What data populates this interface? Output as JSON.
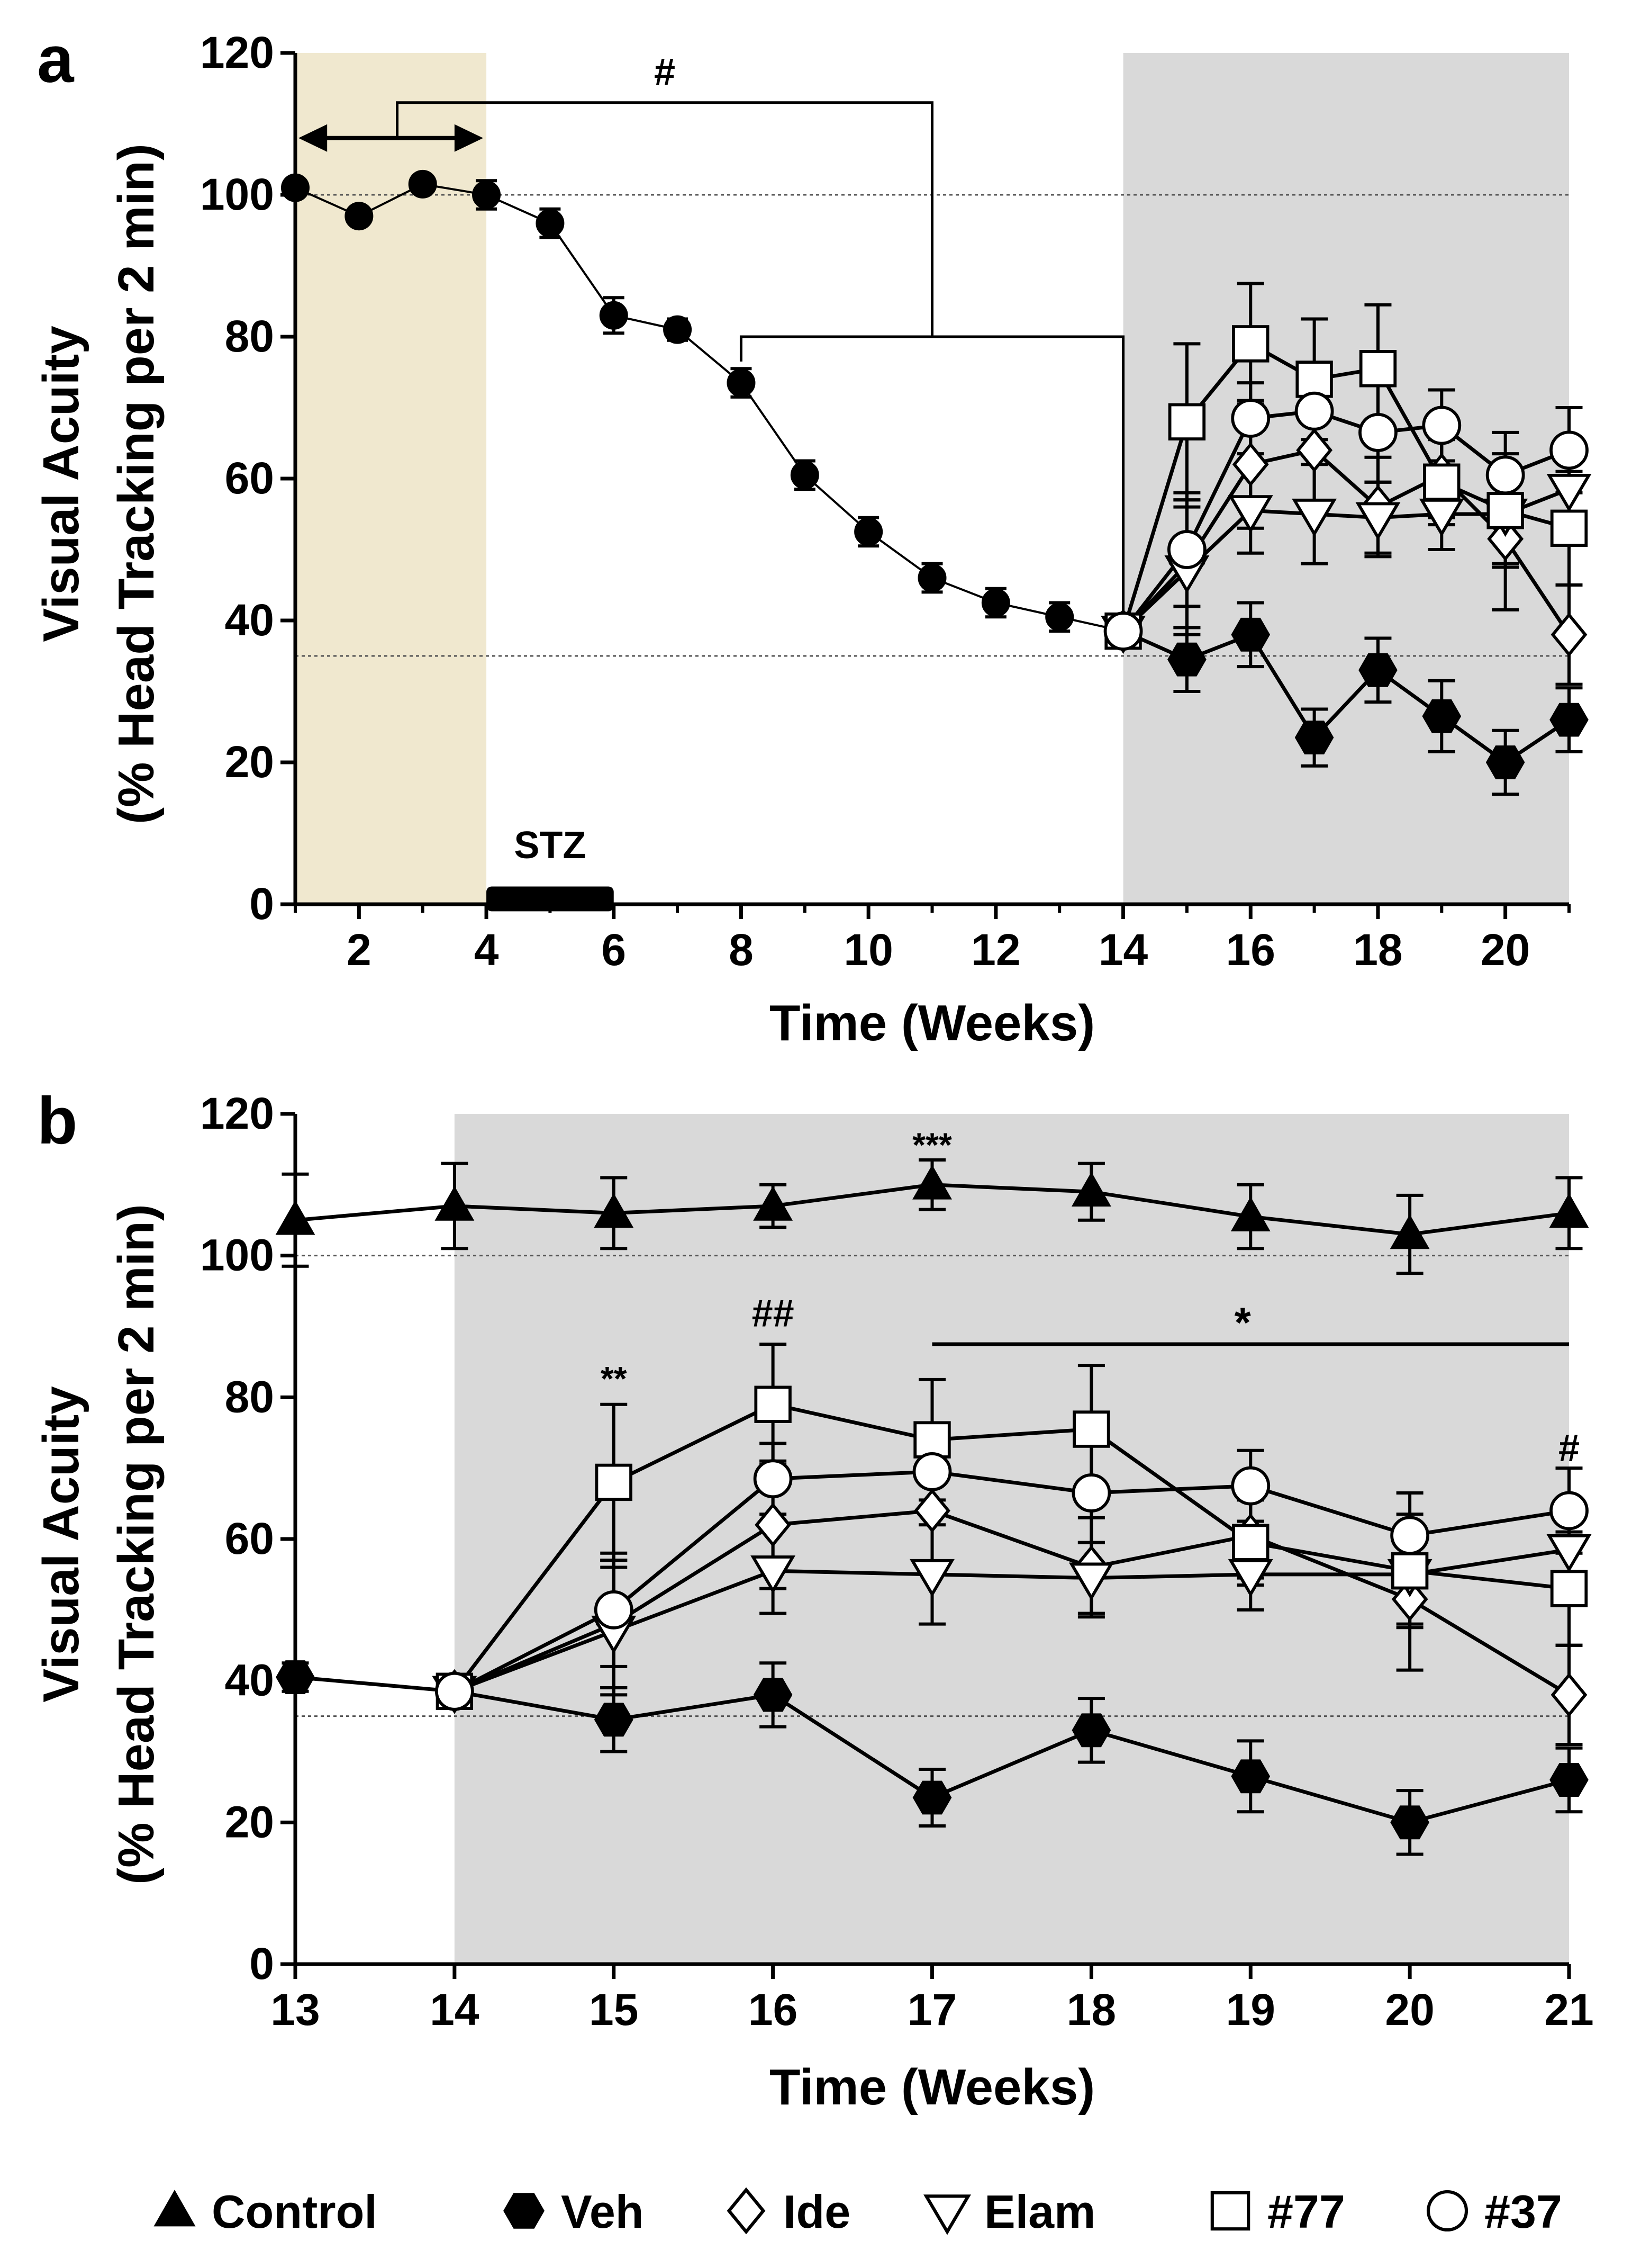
{
  "chart_data": [
    {
      "panel": "a",
      "type": "line",
      "xlabel": "Time (Weeks)",
      "ylabel_line1": "Visual Acuity",
      "ylabel_line2": "(% Head Tracking per 2 min)",
      "xlim": [
        1,
        21
      ],
      "ylim": [
        0,
        120
      ],
      "xticks": [
        2,
        4,
        6,
        8,
        10,
        12,
        14,
        16,
        18,
        20
      ],
      "yticks": [
        0,
        20,
        40,
        60,
        80,
        100,
        120
      ],
      "reference_lines": [
        100,
        35
      ],
      "shaded_regions": [
        {
          "from": 1,
          "to": 4,
          "color": "#f0e8cf"
        },
        {
          "from": 14,
          "to": 21,
          "color": "#d9d9d9"
        }
      ],
      "stz_bar": {
        "label": "STZ",
        "from": 4,
        "to": 6
      },
      "annotations": {
        "hash": "#"
      },
      "baseline_series": {
        "x": [
          1,
          2,
          3,
          4,
          5,
          6,
          7,
          8,
          9,
          10,
          11,
          12,
          13,
          14
        ],
        "y": [
          101,
          97,
          101.5,
          100,
          96,
          83,
          81,
          73.5,
          60.5,
          52.5,
          46,
          42.5,
          40.5,
          38.5
        ],
        "err": [
          0,
          0,
          0,
          2,
          2,
          2.5,
          1.5,
          2,
          2,
          2,
          2,
          2,
          2,
          2
        ]
      },
      "series": [
        {
          "name": "Veh",
          "marker": "hexagon",
          "x": [
            14,
            15,
            16,
            17,
            18,
            19,
            20,
            21
          ],
          "y": [
            38.5,
            34.5,
            38,
            23.5,
            33,
            26.5,
            20,
            26
          ],
          "err": [
            2,
            4.5,
            4.5,
            4,
            4.5,
            5,
            4.5,
            4.5
          ]
        },
        {
          "name": "Ide",
          "marker": "diamond",
          "x": [
            14,
            15,
            16,
            17,
            18,
            19,
            20,
            21
          ],
          "y": [
            38.5,
            48,
            62,
            64,
            56,
            60.5,
            51.5,
            38
          ],
          "err": [
            2,
            9,
            9,
            8,
            7,
            6,
            10,
            7
          ]
        },
        {
          "name": "Elam",
          "marker": "tri-down",
          "x": [
            14,
            15,
            16,
            17,
            18,
            19,
            20,
            21
          ],
          "y": [
            38.5,
            47,
            55.5,
            55,
            54.5,
            55,
            55,
            58.5
          ],
          "err": [
            2,
            9,
            6,
            7,
            5,
            5,
            7,
            7
          ]
        },
        {
          "name": "#77",
          "marker": "square",
          "x": [
            14,
            15,
            16,
            17,
            18,
            19,
            20,
            21
          ],
          "y": [
            38.5,
            68,
            79,
            74,
            75.5,
            59.5,
            55.5,
            53
          ],
          "err": [
            2,
            11,
            8.5,
            8.5,
            9,
            6,
            8,
            8
          ]
        },
        {
          "name": "#37",
          "marker": "circle",
          "x": [
            14,
            15,
            16,
            17,
            18,
            19,
            20,
            21
          ],
          "y": [
            38.5,
            50,
            68.5,
            69.5,
            66.5,
            67.5,
            60.5,
            64
          ],
          "err": [
            2,
            8,
            5,
            6,
            7,
            5,
            6,
            6
          ]
        }
      ]
    },
    {
      "panel": "b",
      "type": "line",
      "xlabel": "Time (Weeks)",
      "ylabel_line1": "Visual Acuity",
      "ylabel_line2": "(% Head Tracking per 2 min)",
      "xlim": [
        13,
        21
      ],
      "ylim": [
        0,
        120
      ],
      "xticks": [
        13,
        14,
        15,
        16,
        17,
        18,
        19,
        20,
        21
      ],
      "yticks": [
        0,
        20,
        40,
        60,
        80,
        100,
        120
      ],
      "reference_lines": [
        100,
        35
      ],
      "shaded_regions": [
        {
          "from": 14,
          "to": 21,
          "color": "#d9d9d9"
        }
      ],
      "annotations": {
        "star2": "**",
        "hash2": "##",
        "star3": "***",
        "star1": "*",
        "hash1": "#"
      },
      "series": [
        {
          "name": "Control",
          "marker": "triangle-up",
          "x": [
            13,
            14,
            15,
            16,
            17,
            18,
            19,
            20,
            21
          ],
          "y": [
            105,
            107,
            106,
            107,
            110,
            109,
            105.5,
            103,
            106
          ],
          "err": [
            6.5,
            6,
            5,
            3,
            3.5,
            4,
            4.5,
            5.5,
            5
          ]
        },
        {
          "name": "Veh",
          "marker": "hexagon",
          "x": [
            13,
            14,
            15,
            16,
            17,
            18,
            19,
            20,
            21
          ],
          "y": [
            40.5,
            38.5,
            34.5,
            38,
            23.5,
            33,
            26.5,
            20,
            26
          ],
          "err": [
            2,
            2,
            4.5,
            4.5,
            4,
            4.5,
            5,
            4.5,
            4.5
          ]
        },
        {
          "name": "Ide",
          "marker": "diamond",
          "x": [
            14,
            15,
            16,
            17,
            18,
            19,
            20,
            21
          ],
          "y": [
            38.5,
            48,
            62,
            64,
            56,
            60.5,
            51.5,
            38
          ],
          "err": [
            2,
            9,
            9,
            8,
            7,
            6,
            10,
            7
          ]
        },
        {
          "name": "Elam",
          "marker": "tri-down",
          "x": [
            14,
            15,
            16,
            17,
            18,
            19,
            20,
            21
          ],
          "y": [
            38.5,
            47,
            55.5,
            55,
            54.5,
            55,
            55,
            58.5
          ],
          "err": [
            2,
            9,
            6,
            7,
            5,
            5,
            7,
            7
          ]
        },
        {
          "name": "#77",
          "marker": "square",
          "x": [
            14,
            15,
            16,
            17,
            18,
            19,
            20,
            21
          ],
          "y": [
            38.5,
            68,
            79,
            74,
            75.5,
            59.5,
            55.5,
            53
          ],
          "err": [
            2,
            11,
            8.5,
            8.5,
            9,
            6,
            8,
            8
          ]
        },
        {
          "name": "#37",
          "marker": "circle",
          "x": [
            14,
            15,
            16,
            17,
            18,
            19,
            20,
            21
          ],
          "y": [
            38.5,
            50,
            68.5,
            69.5,
            66.5,
            67.5,
            60.5,
            64
          ],
          "err": [
            2,
            8,
            5,
            6,
            7,
            5,
            6,
            6
          ]
        }
      ]
    }
  ],
  "legend": [
    {
      "name": "Control",
      "marker": "triangle-up"
    },
    {
      "name": "Veh",
      "marker": "hexagon"
    },
    {
      "name": "Ide",
      "marker": "diamond"
    },
    {
      "name": "Elam",
      "marker": "tri-down"
    },
    {
      "name": "#77",
      "marker": "square"
    },
    {
      "name": "#37",
      "marker": "circle"
    }
  ],
  "panel_labels": {
    "a": "a",
    "b": "b"
  }
}
